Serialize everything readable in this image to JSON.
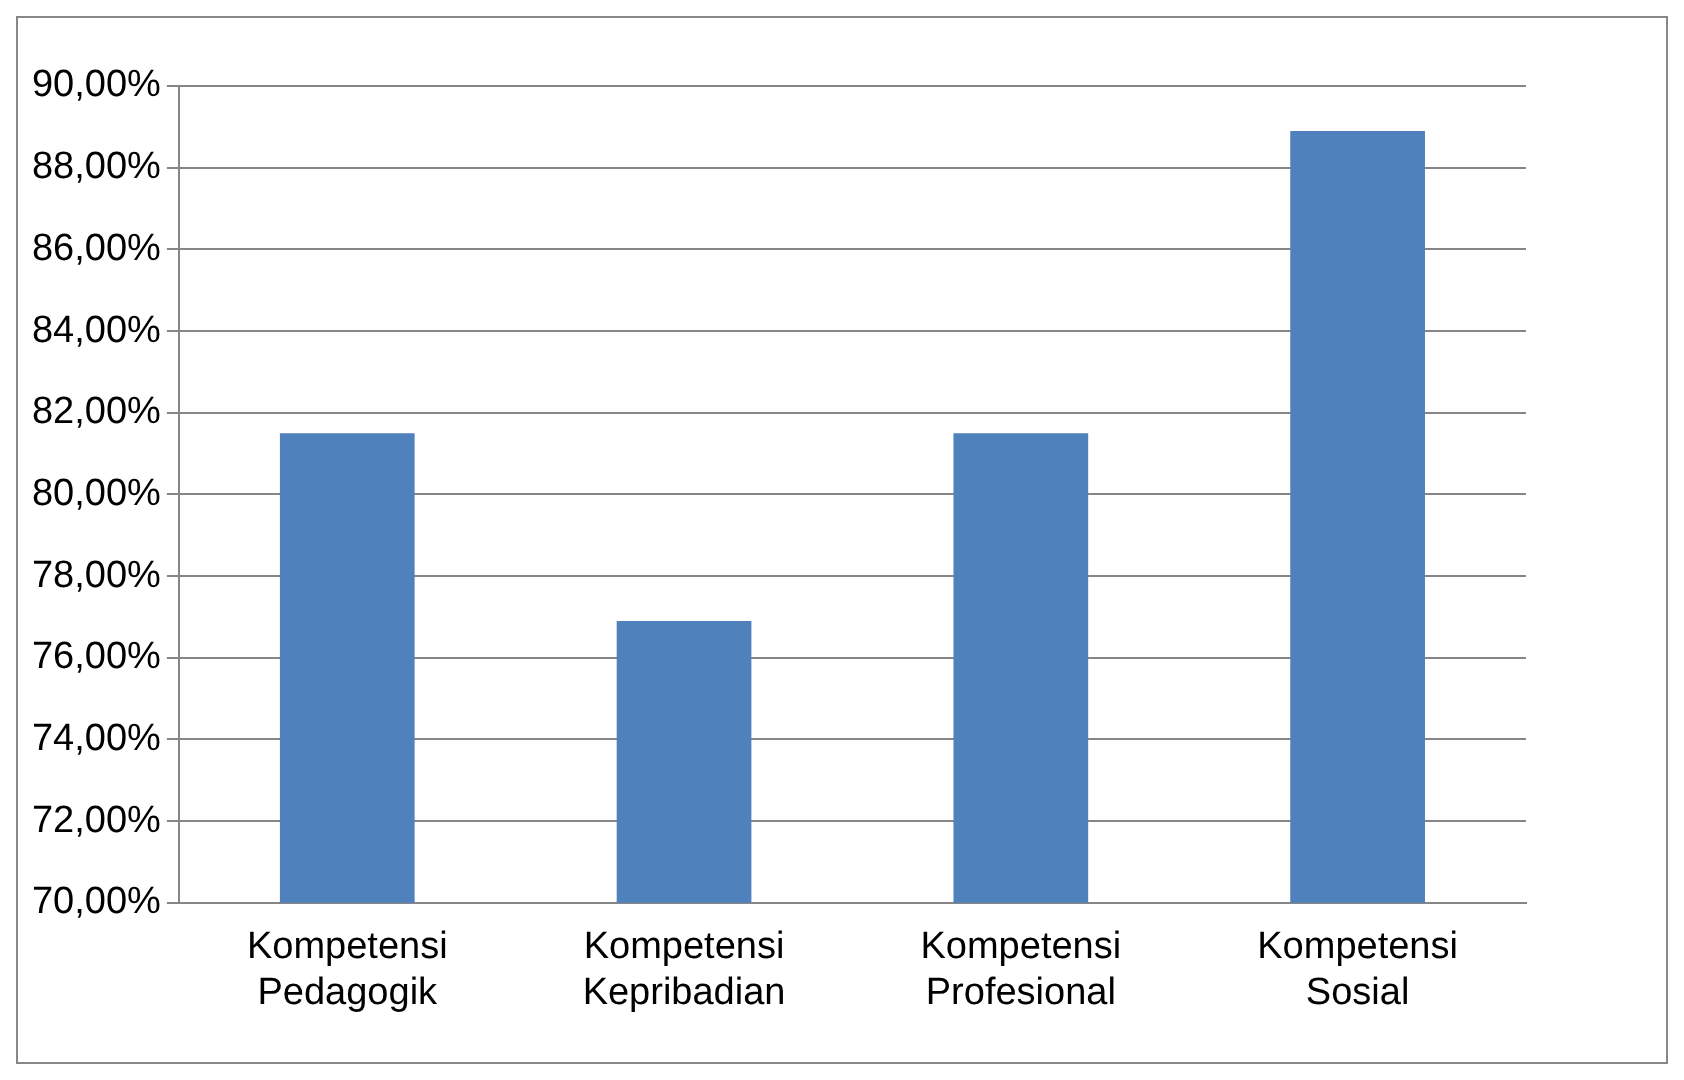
{
  "chart_data": {
    "type": "bar",
    "categories": [
      "Kompetensi Pedagogik",
      "Kompetensi Kepribadian",
      "Kompetensi Profesional",
      "Kompetensi Sosial"
    ],
    "values": [
      81.5,
      76.9,
      81.5,
      88.9
    ],
    "color": "#4f81bd",
    "ylim": [
      70,
      90
    ],
    "yticks": [
      {
        "value": 70,
        "label": "70,00%"
      },
      {
        "value": 72,
        "label": "72,00%"
      },
      {
        "value": 74,
        "label": "74,00%"
      },
      {
        "value": 76,
        "label": "76,00%"
      },
      {
        "value": 78,
        "label": "78,00%"
      },
      {
        "value": 80,
        "label": "80,00%"
      },
      {
        "value": 82,
        "label": "82,00%"
      },
      {
        "value": 84,
        "label": "84,00%"
      },
      {
        "value": 86,
        "label": "86,00%"
      },
      {
        "value": 88,
        "label": "88,00%"
      },
      {
        "value": 90,
        "label": "90,00%"
      }
    ],
    "grid": "y",
    "legend": false
  }
}
